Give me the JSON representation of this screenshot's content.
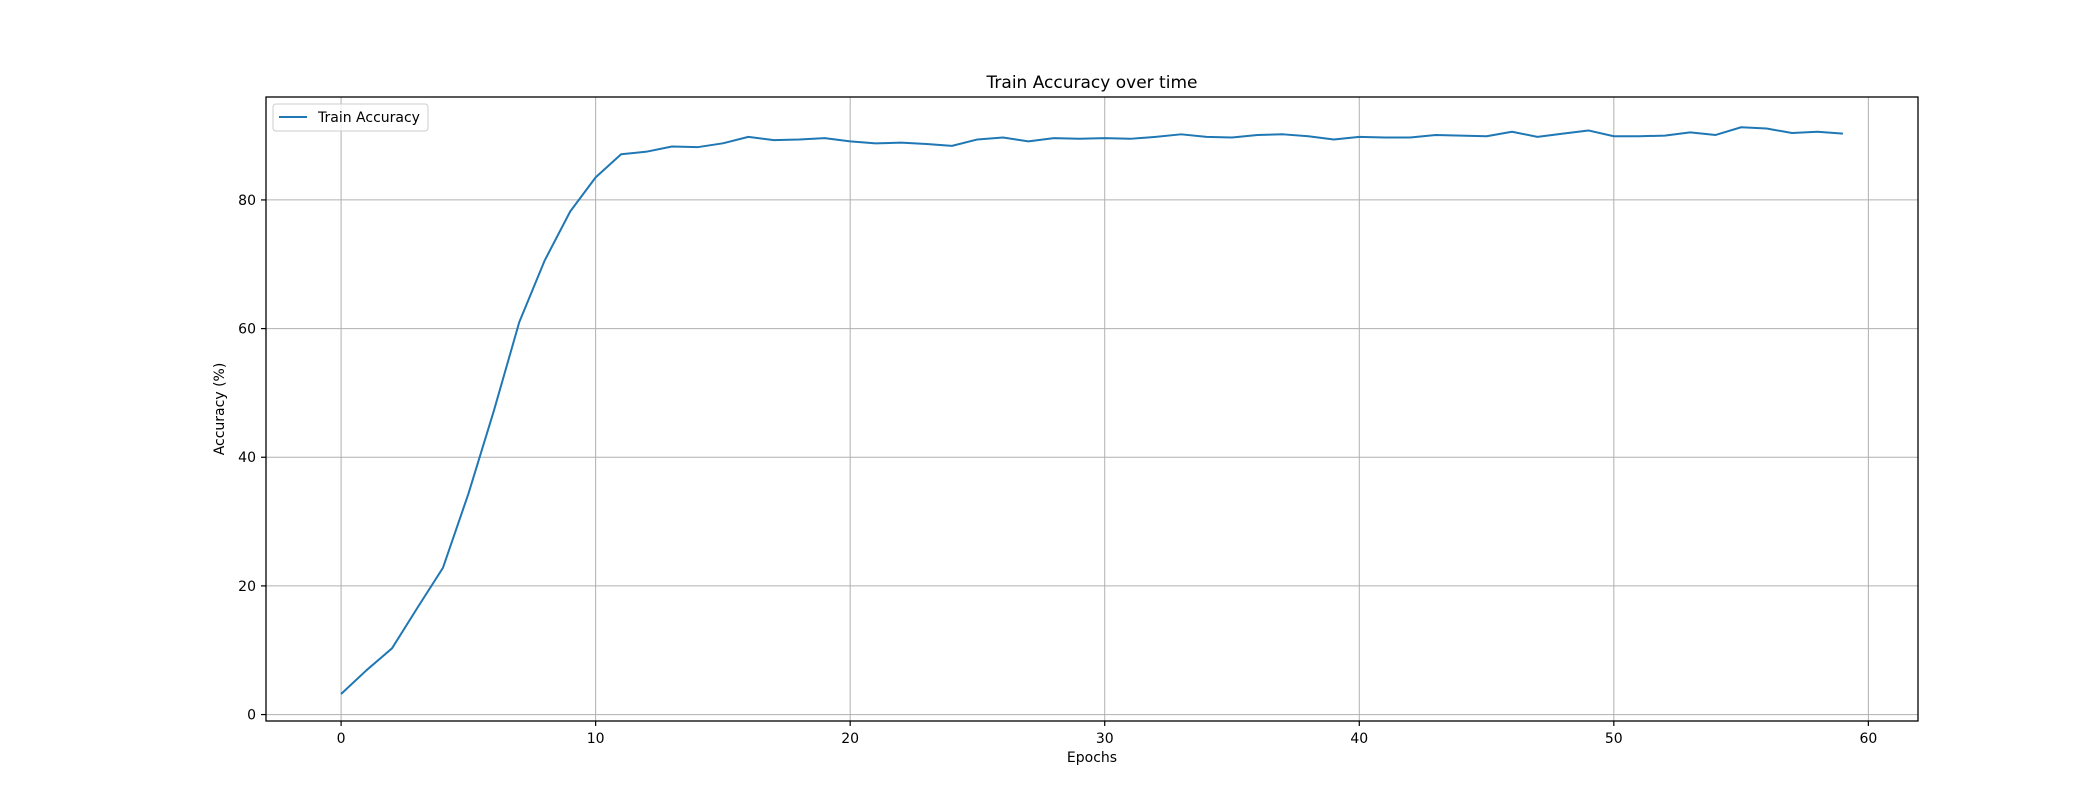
{
  "chart_data": {
    "type": "line",
    "title": "Train Accuracy over time",
    "xlabel": "Epochs",
    "ylabel": "Accuracy (%)",
    "xlim": [
      -2.95,
      61.95
    ],
    "ylim": [
      -1.0,
      96.0
    ],
    "xticks": [
      0,
      10,
      20,
      30,
      40,
      50,
      60
    ],
    "yticks": [
      0,
      20,
      40,
      60,
      80
    ],
    "grid": true,
    "legend_position": "upper-left",
    "series": [
      {
        "name": "Train Accuracy",
        "color": "#1f77b4",
        "x": [
          0,
          1,
          2,
          3,
          4,
          5,
          6,
          7,
          8,
          9,
          10,
          11,
          12,
          13,
          14,
          15,
          16,
          17,
          18,
          19,
          20,
          21,
          22,
          23,
          24,
          25,
          26,
          27,
          28,
          29,
          30,
          31,
          32,
          33,
          34,
          35,
          36,
          37,
          38,
          39,
          40,
          41,
          42,
          43,
          44,
          45,
          46,
          47,
          48,
          49,
          50,
          51,
          52,
          53,
          54,
          55,
          56,
          57,
          58,
          59
        ],
        "values": [
          3.2,
          6.9,
          10.3,
          16.6,
          22.8,
          34.3,
          47.2,
          61.0,
          70.6,
          78.2,
          83.5,
          87.1,
          87.5,
          88.3,
          88.2,
          88.8,
          89.8,
          89.3,
          89.4,
          89.6,
          89.1,
          88.8,
          88.9,
          88.7,
          88.4,
          89.4,
          89.7,
          89.1,
          89.6,
          89.5,
          89.6,
          89.5,
          89.8,
          90.2,
          89.8,
          89.7,
          90.1,
          90.2,
          89.9,
          89.4,
          89.8,
          89.7,
          89.7,
          90.1,
          90.0,
          89.9,
          90.6,
          89.8,
          90.3,
          90.8,
          89.9,
          89.9,
          90.0,
          90.5,
          90.1,
          91.3,
          91.1,
          90.4,
          90.6,
          90.3
        ]
      }
    ]
  }
}
